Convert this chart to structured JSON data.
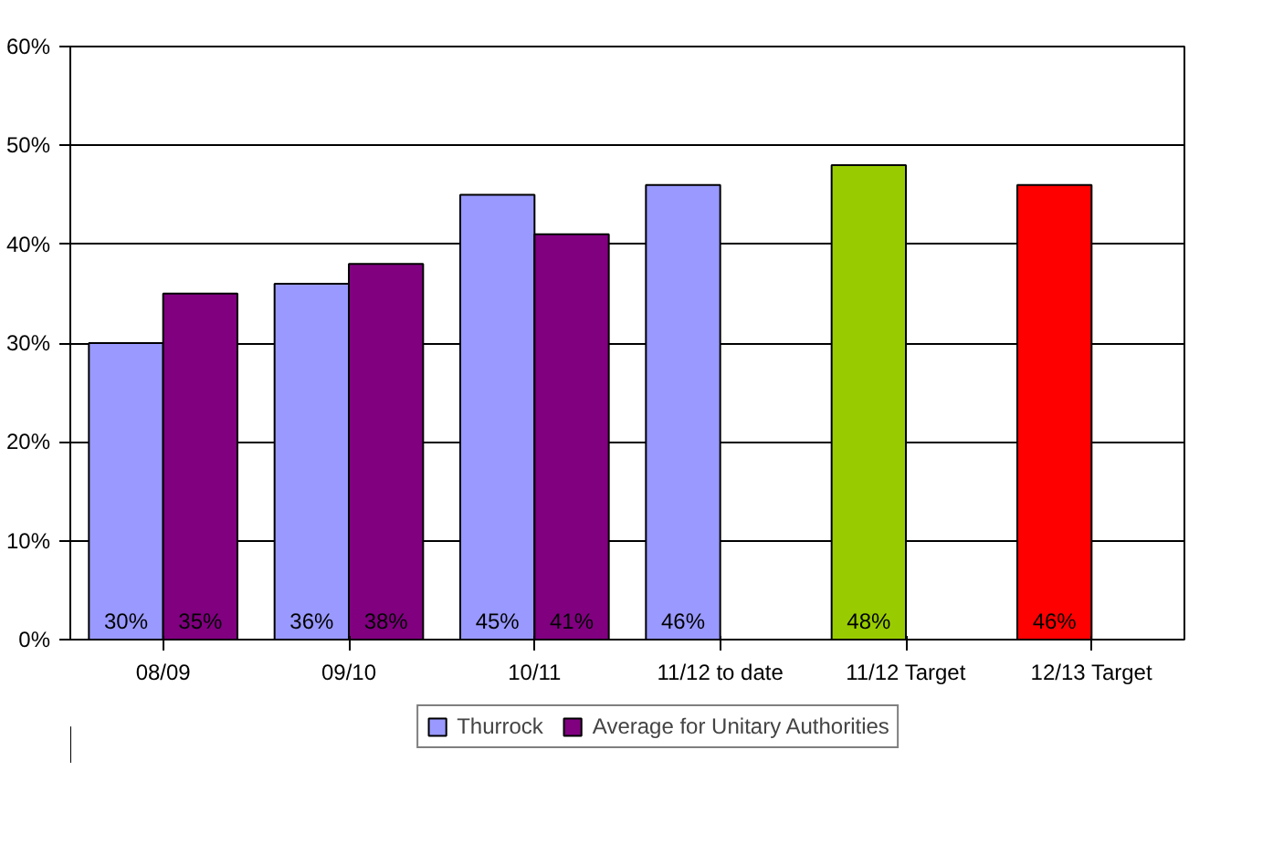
{
  "chart_data": {
    "type": "bar",
    "categories": [
      "08/09",
      "09/10",
      "10/11",
      "11/12 to date",
      "11/12 Target",
      "12/13 Target"
    ],
    "series": [
      {
        "name": "Thurrock",
        "color": "#9999ff",
        "colors": [
          "#9999ff",
          "#9999ff",
          "#9999ff",
          "#9999ff",
          "#99cc00",
          "#ff0000"
        ],
        "values": [
          30,
          36,
          45,
          46,
          48,
          46
        ],
        "value_labels": [
          "30%",
          "36%",
          "45%",
          "46%",
          "48%",
          "46%"
        ]
      },
      {
        "name": "Average for Unitary Authorities",
        "color": "#800080",
        "values": [
          35,
          38,
          41,
          null,
          null,
          null
        ],
        "value_labels": [
          "35%",
          "38%",
          "41%",
          null,
          null,
          null
        ]
      }
    ],
    "ylim": [
      0,
      60
    ],
    "yticks": [
      {
        "value": 0,
        "label": "0%"
      },
      {
        "value": 10,
        "label": "10%"
      },
      {
        "value": 20,
        "label": "20%"
      },
      {
        "value": 30,
        "label": "30%"
      },
      {
        "value": 40,
        "label": "40%"
      },
      {
        "value": 50,
        "label": "50%"
      },
      {
        "value": 60,
        "label": "60%"
      }
    ],
    "grid": "y",
    "legend": "bottom"
  }
}
